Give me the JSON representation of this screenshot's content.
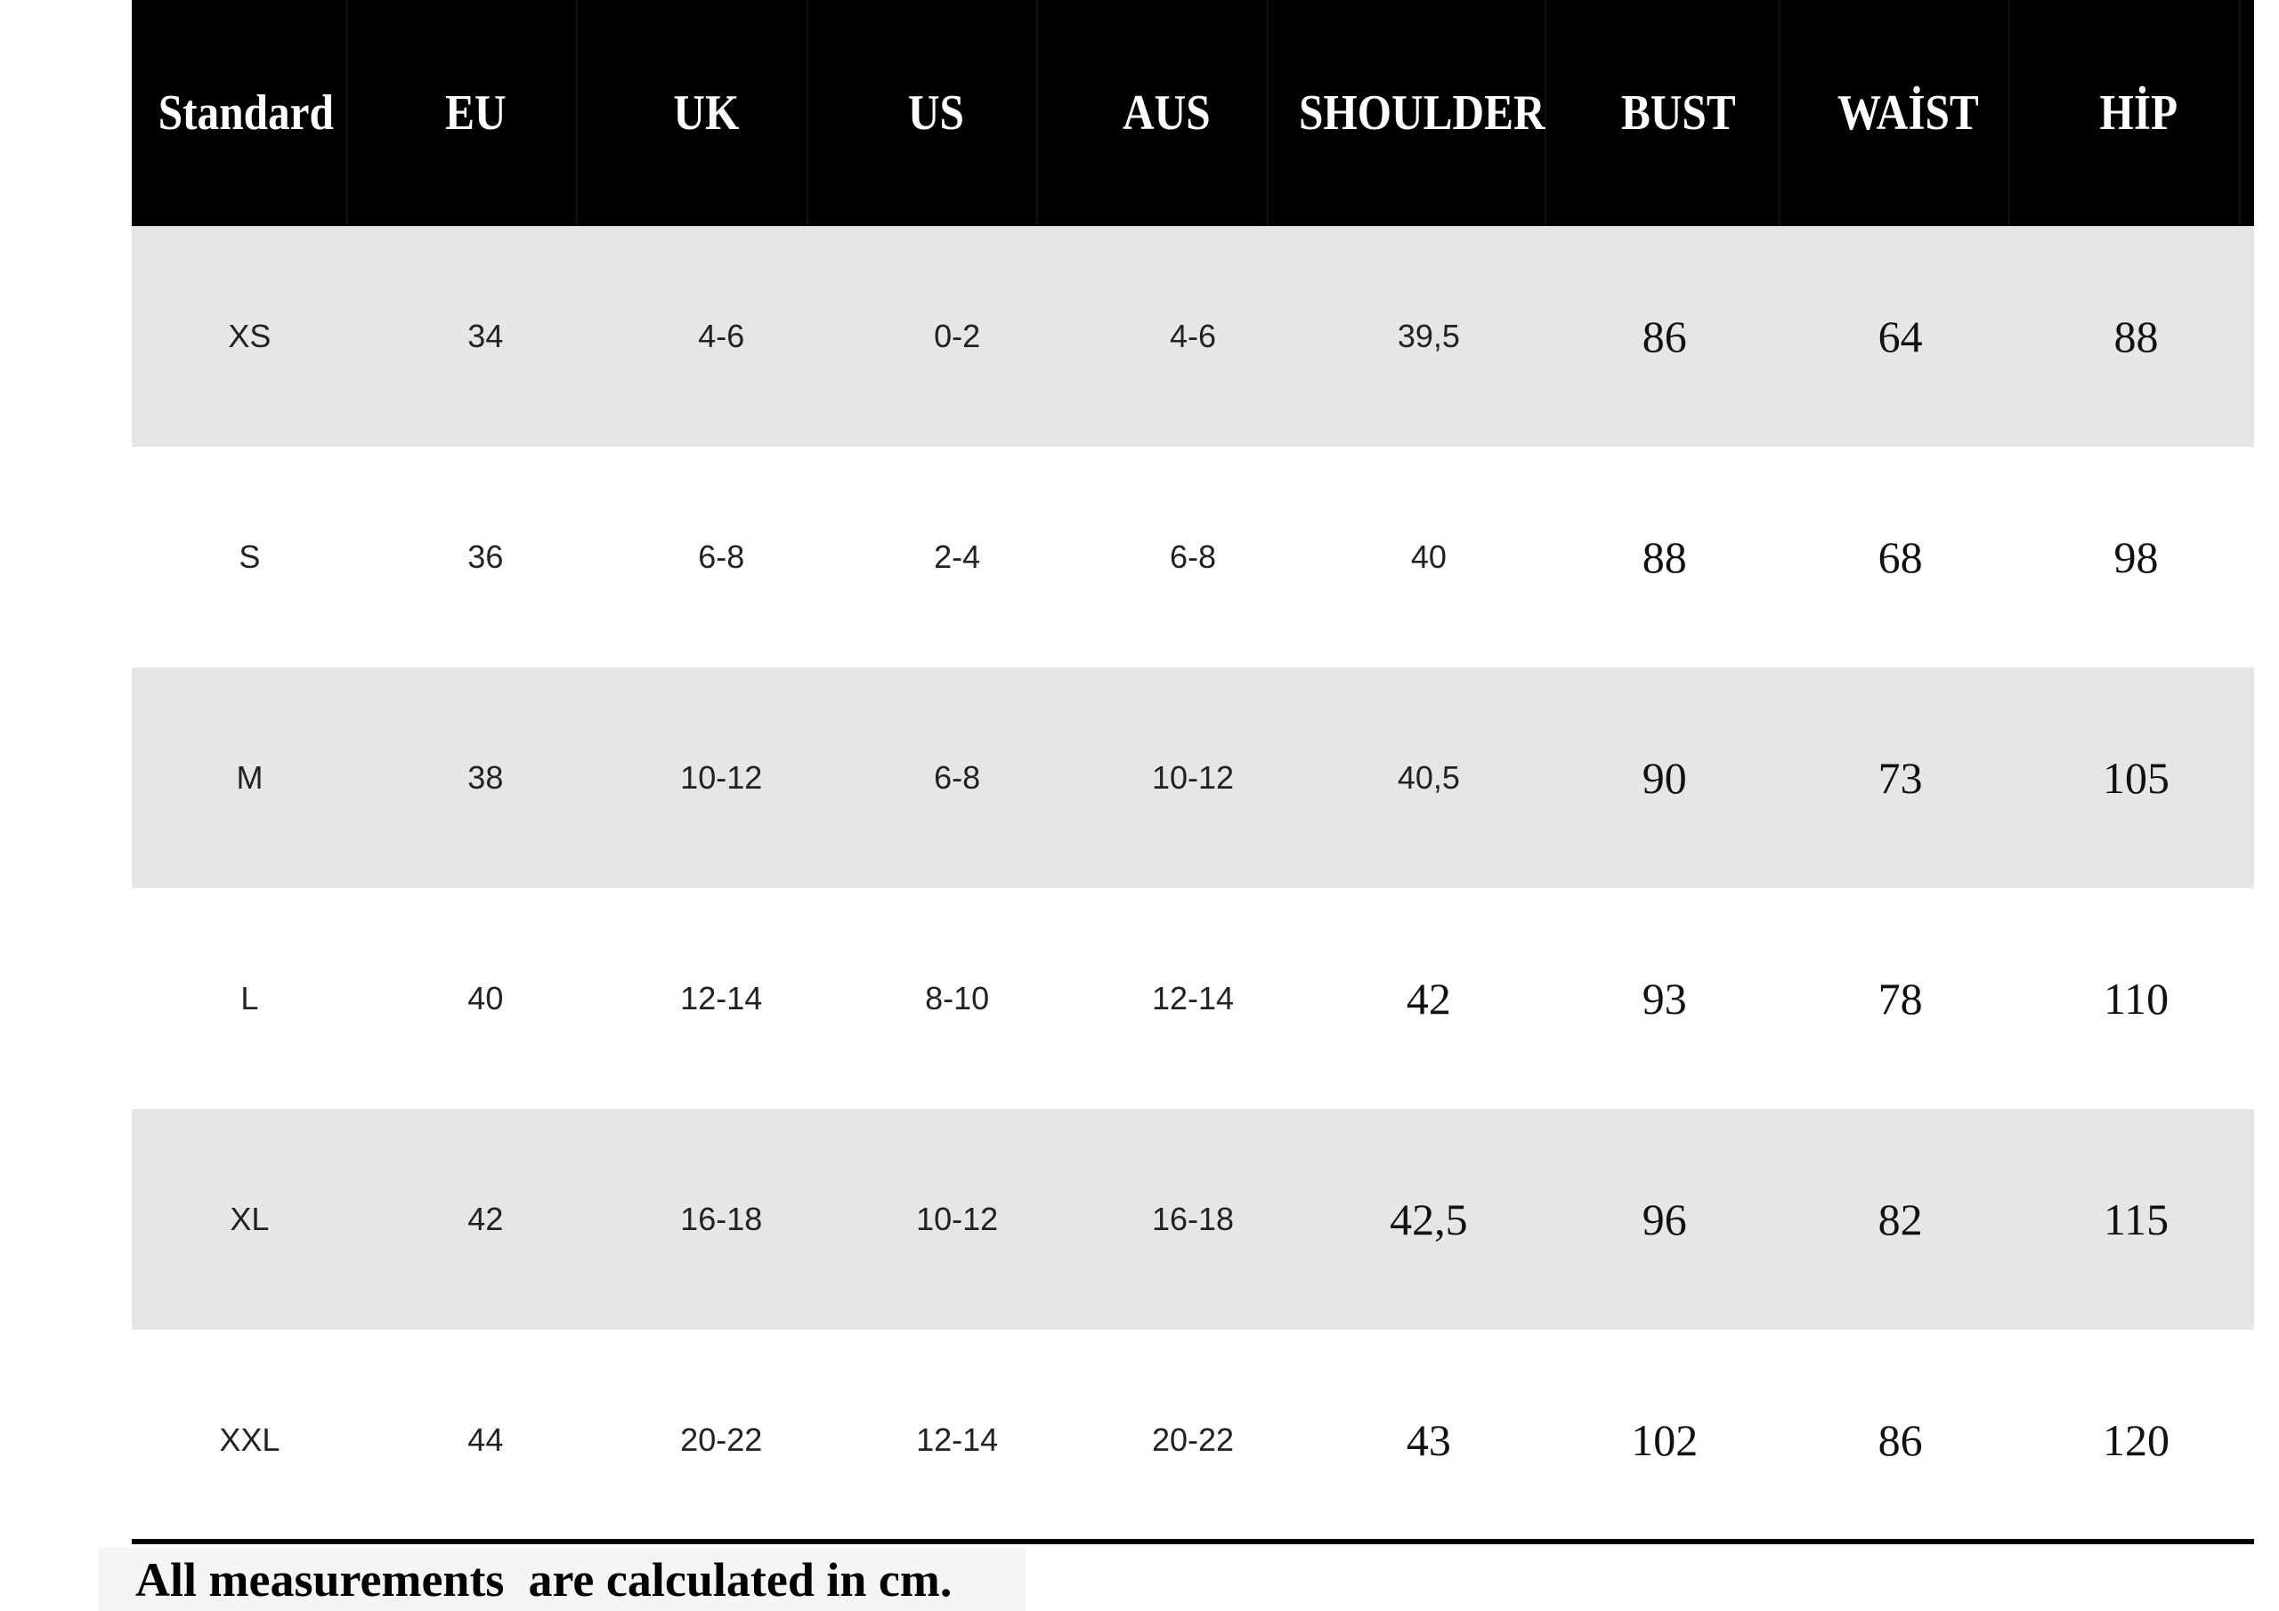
{
  "headers": [
    "Standard",
    "EU",
    "UK",
    "US",
    "AUS",
    "SHOULDER",
    "BUST",
    "WAİST",
    "HİP"
  ],
  "rows": [
    [
      "XS",
      "34",
      "4-6",
      "0-2",
      "4-6",
      "39,5",
      "86",
      "64",
      "88"
    ],
    [
      "S",
      "36",
      "6-8",
      "2-4",
      "6-8",
      "40",
      "88",
      "68",
      "98"
    ],
    [
      "M",
      "38",
      "10-12",
      "6-8",
      "10-12",
      "40,5",
      "90",
      "73",
      "105"
    ],
    [
      "L",
      "40",
      "12-14",
      "8-10",
      "12-14",
      "42",
      "93",
      "78",
      "110"
    ],
    [
      "XL",
      "42",
      "16-18",
      "10-12",
      "16-18",
      "42,5",
      "96",
      "82",
      "115"
    ],
    [
      "XXL",
      "44",
      "20-22",
      "12-14",
      "20-22",
      "43",
      "102",
      "86",
      "120"
    ]
  ],
  "footer": "All measurements  are calculated in cm.",
  "colors": {
    "header_bg": "#000000",
    "shade_row": "#e6e6e6"
  }
}
